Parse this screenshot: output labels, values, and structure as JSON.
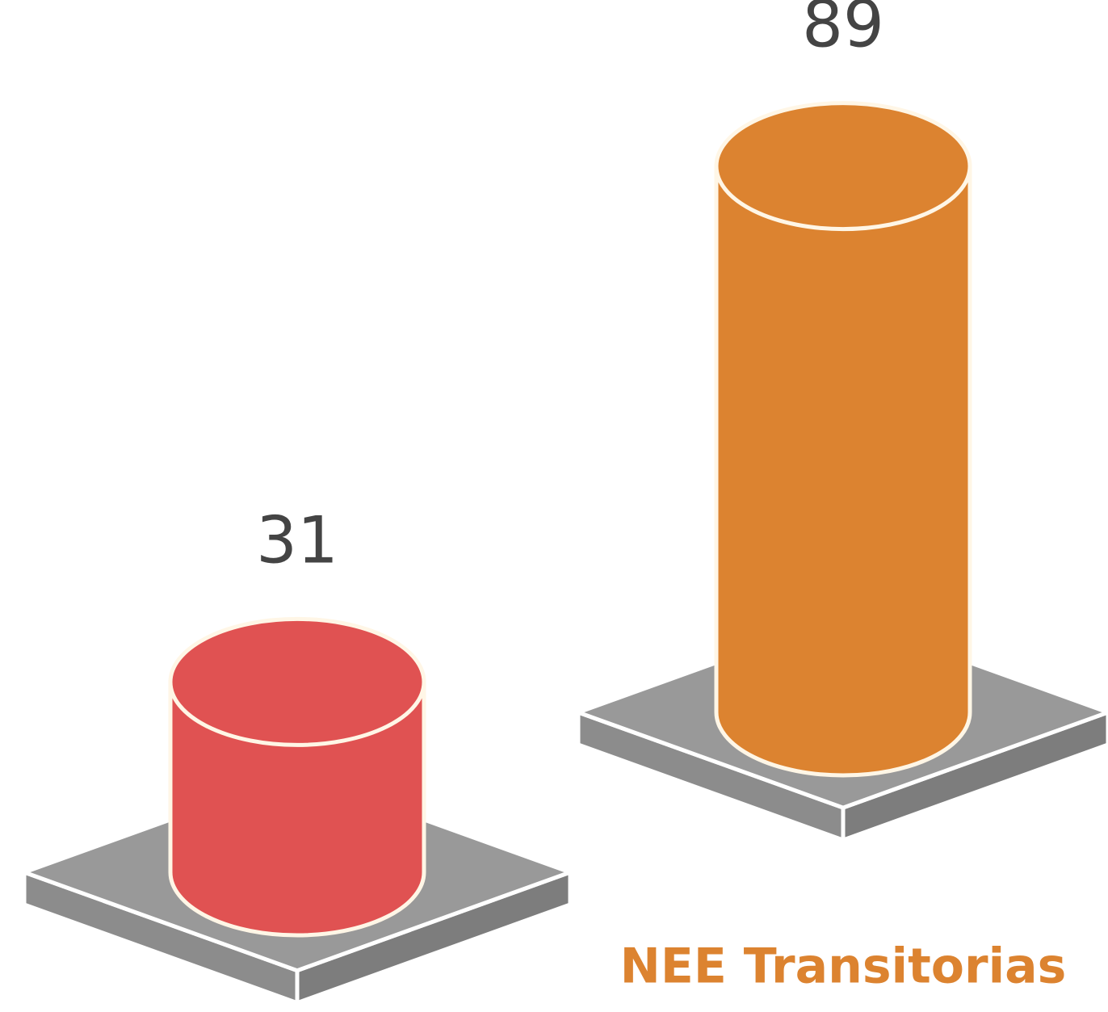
{
  "chart_data": {
    "type": "bar",
    "categories": [
      null,
      "NEE Transitorias"
    ],
    "values": [
      31,
      89
    ],
    "colors": [
      "#e05252",
      "#dc8330"
    ]
  }
}
